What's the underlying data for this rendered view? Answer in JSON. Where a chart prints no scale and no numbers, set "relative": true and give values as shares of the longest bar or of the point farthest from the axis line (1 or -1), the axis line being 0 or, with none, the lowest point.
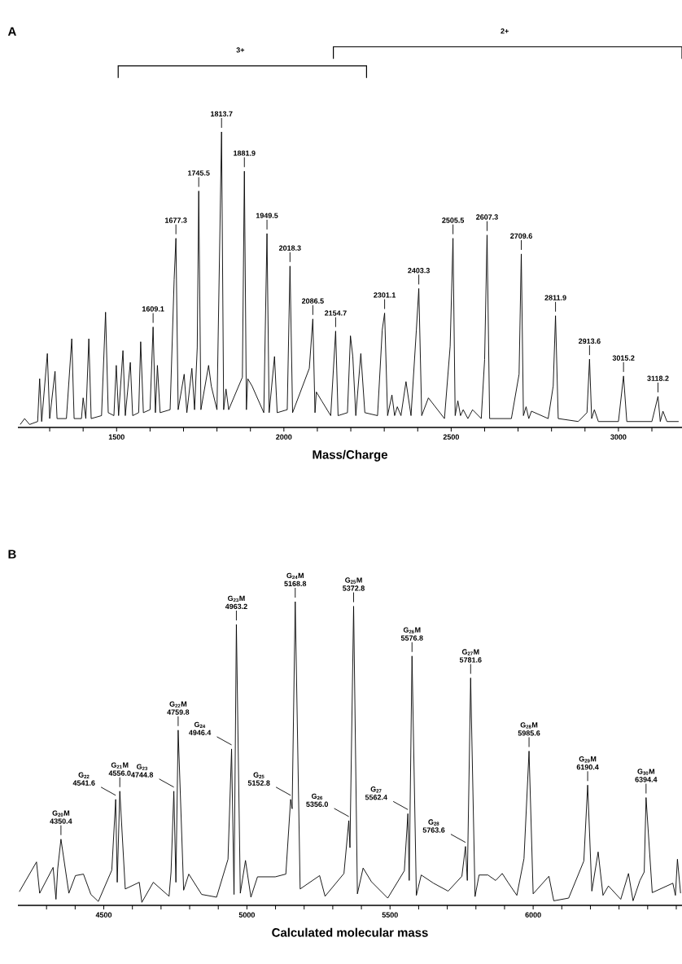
{
  "chart_data": [
    {
      "type": "line",
      "title": "A",
      "xlabel": "Mass/Charge",
      "relative": true,
      "xlim": [
        1205,
        3190
      ],
      "xticks": [
        {
          "value": 1300,
          "label": null
        },
        {
          "value": 1400,
          "label": null
        },
        1500,
        {
          "value": 1600,
          "label": null
        },
        {
          "value": 1700,
          "label": null
        },
        {
          "value": 1800,
          "label": null
        },
        {
          "value": 1900,
          "label": null
        },
        2000,
        {
          "value": 2100,
          "label": null
        },
        {
          "value": 2200,
          "label": null
        },
        {
          "value": 2300,
          "label": null
        },
        {
          "value": 2400,
          "label": null
        },
        2500,
        {
          "value": 2600,
          "label": null
        },
        {
          "value": 2700,
          "label": null
        },
        {
          "value": 2800,
          "label": null
        },
        {
          "value": 2900,
          "label": null
        },
        3000,
        {
          "value": 3100,
          "label": null
        }
      ],
      "x": [
        1212,
        1225,
        1240,
        1264,
        1270,
        1276,
        1293,
        1300,
        1316,
        1322,
        1350,
        1366,
        1373,
        1395,
        1400,
        1408,
        1417,
        1424,
        1455,
        1467,
        1475,
        1492,
        1499,
        1506,
        1519,
        1526,
        1541,
        1548,
        1566,
        1572,
        1580,
        1600,
        1609.1,
        1616,
        1622,
        1630,
        1660,
        1672,
        1677.3,
        1684,
        1702,
        1710,
        1725,
        1733,
        1741,
        1745.5,
        1752,
        1775,
        1783,
        1800,
        1813.7,
        1820,
        1827,
        1835,
        1876,
        1881.9,
        1888,
        1892,
        1905,
        1940,
        1949.5,
        1956,
        1972,
        1980,
        2010,
        2018.3,
        2026,
        2076,
        2086.5,
        2093,
        2097,
        2113,
        2140,
        2154.7,
        2162,
        2190,
        2199,
        2206,
        2215,
        2230,
        2242,
        2280,
        2294,
        2301.1,
        2310,
        2323,
        2331,
        2339,
        2350,
        2365,
        2380,
        2396,
        2403.3,
        2412,
        2432,
        2480,
        2497,
        2505.5,
        2512,
        2520,
        2528,
        2536,
        2550,
        2564,
        2590,
        2600,
        2607.3,
        2615,
        2680,
        2703,
        2709.6,
        2716,
        2724,
        2732,
        2740,
        2790,
        2805,
        2811.9,
        2820,
        2880,
        2906,
        2913.6,
        2920,
        2928,
        2940,
        3000,
        3015.2,
        3025,
        3100,
        3118.2,
        3125,
        3133,
        3145,
        3180
      ],
      "series": [
        {
          "color": "#000000",
          "values": [
            0.01,
            0.03,
            0.01,
            0.02,
            0.165,
            0.02,
            0.25,
            0.03,
            0.19,
            0.03,
            0.03,
            0.3,
            0.03,
            0.03,
            0.1,
            0.03,
            0.3,
            0.03,
            0.04,
            0.39,
            0.05,
            0.04,
            0.21,
            0.04,
            0.26,
            0.04,
            0.22,
            0.04,
            0.05,
            0.29,
            0.05,
            0.06,
            0.34,
            0.05,
            0.21,
            0.05,
            0.06,
            0.5,
            0.64,
            0.06,
            0.18,
            0.05,
            0.2,
            0.06,
            0.27,
            0.8,
            0.06,
            0.21,
            0.14,
            0.06,
            1.0,
            0.06,
            0.13,
            0.06,
            0.17,
            0.867,
            0.06,
            0.165,
            0.14,
            0.05,
            0.656,
            0.05,
            0.24,
            0.05,
            0.06,
            0.546,
            0.05,
            0.2,
            0.367,
            0.05,
            0.12,
            0.09,
            0.04,
            0.326,
            0.04,
            0.05,
            0.31,
            0.24,
            0.04,
            0.25,
            0.05,
            0.04,
            0.33,
            0.387,
            0.04,
            0.11,
            0.04,
            0.07,
            0.04,
            0.155,
            0.04,
            0.33,
            0.47,
            0.04,
            0.1,
            0.03,
            0.275,
            0.64,
            0.04,
            0.09,
            0.04,
            0.06,
            0.03,
            0.06,
            0.03,
            0.23,
            0.651,
            0.03,
            0.03,
            0.18,
            0.587,
            0.04,
            0.07,
            0.03,
            0.055,
            0.03,
            0.14,
            0.378,
            0.03,
            0.02,
            0.05,
            0.231,
            0.03,
            0.06,
            0.02,
            0.02,
            0.174,
            0.02,
            0.02,
            0.105,
            0.02,
            0.055,
            0.02,
            0.02
          ]
        }
      ],
      "annotations": [
        {
          "text": "1609.1",
          "x": 1609.1,
          "y": 0.34
        },
        {
          "text": "1677.3",
          "x": 1677.3,
          "y": 0.64
        },
        {
          "text": "1745.5",
          "x": 1745.5,
          "y": 0.8
        },
        {
          "text": "1813.7",
          "x": 1813.7,
          "y": 1.0
        },
        {
          "text": "1881.9",
          "x": 1881.9,
          "y": 0.867
        },
        {
          "text": "1949.5",
          "x": 1949.5,
          "y": 0.656
        },
        {
          "text": "2018.3",
          "x": 2018.3,
          "y": 0.546
        },
        {
          "text": "2086.5",
          "x": 2086.5,
          "y": 0.367
        },
        {
          "text": "2154.7",
          "x": 2154.7,
          "y": 0.326
        },
        {
          "text": "2301.1",
          "x": 2301.1,
          "y": 0.387
        },
        {
          "text": "2403.3",
          "x": 2403.3,
          "y": 0.47
        },
        {
          "text": "2505.5",
          "x": 2505.5,
          "y": 0.64
        },
        {
          "text": "2607.3",
          "x": 2607.3,
          "y": 0.651
        },
        {
          "text": "2709.6",
          "x": 2709.6,
          "y": 0.587
        },
        {
          "text": "2811.9",
          "x": 2811.9,
          "y": 0.378
        },
        {
          "text": "2913.6",
          "x": 2913.6,
          "y": 0.231
        },
        {
          "text": "3015.2",
          "x": 3015.2,
          "y": 0.174
        },
        {
          "text": "3118.2",
          "x": 3118.2,
          "y": 0.105
        },
        "3+",
        "2+"
      ]
    },
    {
      "type": "line",
      "title": "B",
      "xlabel": "Calculated molecular mass",
      "relative": true,
      "xlim": [
        4200,
        6520
      ],
      "xticks": [
        {
          "value": 4300,
          "label": null
        },
        {
          "value": 4400,
          "label": null
        },
        4500,
        {
          "value": 4600,
          "label": null
        },
        {
          "value": 4700,
          "label": null
        },
        {
          "value": 4800,
          "label": null
        },
        {
          "value": 4900,
          "label": null
        },
        5000,
        {
          "value": 5100,
          "label": null
        },
        {
          "value": 5200,
          "label": null
        },
        {
          "value": 5300,
          "label": null
        },
        {
          "value": 5400,
          "label": null
        },
        5500,
        {
          "value": 5600,
          "label": null
        },
        {
          "value": 5700,
          "label": null
        },
        {
          "value": 5800,
          "label": null
        },
        {
          "value": 5900,
          "label": null
        },
        6000,
        {
          "value": 6100,
          "label": null
        },
        {
          "value": 6200,
          "label": null
        },
        {
          "value": 6300,
          "label": null
        },
        {
          "value": 6400,
          "label": null
        },
        {
          "value": 6500,
          "label": null
        }
      ],
      "x": [
        4205,
        4265,
        4276,
        4323,
        4333,
        4339,
        4350.4,
        4378,
        4401,
        4429,
        4455,
        4481,
        4528,
        4541.6,
        4547,
        4556.0,
        4575,
        4624,
        4633,
        4673,
        4728,
        4735,
        4744.8,
        4752,
        4759.8,
        4779,
        4797,
        4842,
        4894,
        4934,
        4946.4,
        4955,
        4963.2,
        4977,
        4995,
        5014,
        5037,
        5099,
        5136,
        5152.8,
        5158,
        5168.8,
        5186,
        5254,
        5273,
        5339,
        5356.0,
        5360,
        5372.8,
        5386,
        5406,
        5435,
        5492,
        5550,
        5562.4,
        5567,
        5576.8,
        5592,
        5609,
        5652,
        5703,
        5751,
        5763.6,
        5770,
        5781.6,
        5797,
        5811,
        5842,
        5869,
        5892,
        5914,
        5943,
        5968,
        5985.6,
        6000,
        6055,
        6072,
        6124,
        6177,
        6190.4,
        6205,
        6227,
        6244,
        6263,
        6306,
        6333,
        6349,
        6373,
        6388,
        6394.4,
        6416,
        6488,
        6497,
        6504,
        6515
      ],
      "series": [
        {
          "color": "#000000",
          "values": [
            0.045,
            0.143,
            0.04,
            0.125,
            0.02,
            0.12,
            0.218,
            0.04,
            0.098,
            0.103,
            0.036,
            0.013,
            0.116,
            0.349,
            0.076,
            0.376,
            0.054,
            0.076,
            0.01,
            0.076,
            0.03,
            0.11,
            0.376,
            0.076,
            0.577,
            0.05,
            0.103,
            0.036,
            0.027,
            0.152,
            0.515,
            0.036,
            0.925,
            0.04,
            0.148,
            0.027,
            0.094,
            0.094,
            0.103,
            0.349,
            0.318,
            1.0,
            0.054,
            0.098,
            0.03,
            0.105,
            0.279,
            0.19,
            0.985,
            0.038,
            0.123,
            0.078,
            0.024,
            0.114,
            0.302,
            0.082,
            0.821,
            0.033,
            0.1,
            0.073,
            0.047,
            0.096,
            0.194,
            0.082,
            0.749,
            0.029,
            0.1,
            0.1,
            0.082,
            0.105,
            0.073,
            0.033,
            0.154,
            0.508,
            0.038,
            0.096,
            0.015,
            0.024,
            0.146,
            0.396,
            0.047,
            0.176,
            0.033,
            0.064,
            0.02,
            0.105,
            0.015,
            0.082,
            0.11,
            0.355,
            0.042,
            0.073,
            0.033,
            0.152,
            0.04
          ]
        }
      ],
      "annotations": [
        {
          "text": "G$_{20}$M 4350.4",
          "x": 4350.4,
          "y": 0.218
        },
        {
          "text": "G$_{22}$ 4541.6",
          "x": 4541.6,
          "y": 0.349
        },
        {
          "text": "G$_{21}$M 4556.0",
          "x": 4556.0,
          "y": 0.376
        },
        {
          "text": "G$_{23}$ 4744.8",
          "x": 4744.8,
          "y": 0.376
        },
        {
          "text": "G$_{22}$M 4759.8",
          "x": 4759.8,
          "y": 0.577
        },
        {
          "text": "G$_{24}$ 4946.4",
          "x": 4946.4,
          "y": 0.515
        },
        {
          "text": "G$_{23}$M 4963.2",
          "x": 4963.2,
          "y": 0.925
        },
        {
          "text": "G$_{25}$ 5152.8",
          "x": 5152.8,
          "y": 0.349
        },
        {
          "text": "G$_{24}$M 5168.8",
          "x": 5168.8,
          "y": 1.0
        },
        {
          "text": "G$_{26}$ 5356.0",
          "x": 5356.0,
          "y": 0.279
        },
        {
          "text": "G$_{25}$M 5372.8",
          "x": 5372.8,
          "y": 0.985
        },
        {
          "text": "G$_{27}$ 5562.4",
          "x": 5562.4,
          "y": 0.302
        },
        {
          "text": "G$_{26}$M 5576.8",
          "x": 5576.8,
          "y": 0.821
        },
        {
          "text": "G$_{28}$ 5763.6",
          "x": 5763.6,
          "y": 0.194
        },
        {
          "text": "G$_{27}$M 5781.6",
          "x": 5781.6,
          "y": 0.749
        },
        {
          "text": "G$_{28}$M 5985.6",
          "x": 5985.6,
          "y": 0.508
        },
        {
          "text": "G$_{29}$M 6190.4",
          "x": 6190.4,
          "y": 0.396
        },
        {
          "text": "G$_{30}$M 6394.4",
          "x": 6394.4,
          "y": 0.355
        }
      ]
    }
  ]
}
